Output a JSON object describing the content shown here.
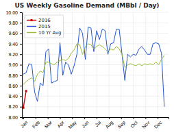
{
  "chart_data": {
    "type": "line",
    "title": "US Weekly Gasoline Demand (MBbl / Day)",
    "x": [
      0,
      1,
      2,
      3,
      4,
      5,
      6,
      7,
      8,
      9,
      10,
      11,
      12,
      13,
      14,
      15,
      16,
      17,
      18,
      19,
      20,
      21,
      22,
      23,
      24,
      25,
      26,
      27,
      28,
      29,
      30,
      31,
      32,
      33,
      34,
      35,
      36,
      37,
      38,
      39,
      40,
      41,
      42,
      43,
      44,
      45,
      46,
      47,
      48,
      49,
      50,
      51
    ],
    "series": [
      {
        "name": "2016",
        "color": "#cc0000",
        "marker": "square",
        "values": [
          8.18,
          8.5,
          null,
          null,
          null,
          null,
          null,
          null,
          null,
          null,
          null,
          null,
          null,
          null,
          null,
          null,
          null,
          null,
          null,
          null,
          null,
          null,
          null,
          null,
          null,
          null,
          null,
          null,
          null,
          null,
          null,
          null,
          null,
          null,
          null,
          null,
          null,
          null,
          null,
          null,
          null,
          null,
          null,
          null,
          null,
          null,
          null,
          null,
          null,
          null,
          null,
          null
        ]
      },
      {
        "name": "2015",
        "color": "#2255cc",
        "values": [
          8.82,
          8.85,
          9.02,
          9.0,
          8.48,
          8.3,
          8.65,
          8.6,
          9.25,
          9.3,
          8.65,
          8.68,
          8.7,
          9.42,
          8.8,
          9.05,
          9.0,
          8.82,
          8.98,
          9.2,
          9.7,
          9.6,
          9.1,
          9.72,
          9.7,
          9.25,
          9.65,
          9.48,
          9.68,
          9.65,
          9.2,
          9.4,
          9.42,
          9.68,
          9.68,
          9.2,
          8.7,
          9.2,
          9.15,
          9.2,
          9.18,
          9.3,
          9.35,
          9.28,
          9.2,
          9.2,
          9.4,
          9.42,
          9.4,
          9.22,
          8.2,
          null
        ]
      },
      {
        "name": "10 Yr Avg",
        "color": "#99bb33",
        "values": [
          8.62,
          8.68,
          8.72,
          8.75,
          8.68,
          8.82,
          8.88,
          8.85,
          9.05,
          9.05,
          9.02,
          9.0,
          9.05,
          9.08,
          9.1,
          9.08,
          9.12,
          9.22,
          9.28,
          9.4,
          9.38,
          9.2,
          9.35,
          9.4,
          9.38,
          9.3,
          9.35,
          9.38,
          9.35,
          9.3,
          9.25,
          9.3,
          9.28,
          9.35,
          9.3,
          9.2,
          8.95,
          9.0,
          9.02,
          9.0,
          8.98,
          9.02,
          8.98,
          9.02,
          9.0,
          9.02,
          9.0,
          9.05,
          9.0,
          9.1,
          9.18,
          null
        ]
      }
    ],
    "xlim": [
      -0.5,
      51.5
    ],
    "xticks": [
      {
        "value": 0,
        "label": "Jan"
      },
      {
        "value": 4.33,
        "label": "Feb"
      },
      {
        "value": 8.66,
        "label": "Mar"
      },
      {
        "value": 13.0,
        "label": "Apr"
      },
      {
        "value": 17.33,
        "label": "May"
      },
      {
        "value": 21.66,
        "label": "Jun"
      },
      {
        "value": 26.0,
        "label": "Jul"
      },
      {
        "value": 30.33,
        "label": "Aug"
      },
      {
        "value": 34.66,
        "label": "Sep"
      },
      {
        "value": 39.0,
        "label": "Oct"
      },
      {
        "value": 43.33,
        "label": "Nov"
      },
      {
        "value": 47.66,
        "label": "Dec"
      }
    ],
    "ylim": [
      8.0,
      10.0
    ],
    "yticks": [
      {
        "value": 8.0,
        "label": "8.00"
      },
      {
        "value": 8.2,
        "label": "8.20"
      },
      {
        "value": 8.4,
        "label": "8.40"
      },
      {
        "value": 8.6,
        "label": "8.60"
      },
      {
        "value": 8.8,
        "label": "8.80"
      },
      {
        "value": 9.0,
        "label": "9.00"
      },
      {
        "value": 9.2,
        "label": "9.20"
      },
      {
        "value": 9.4,
        "label": "9.40"
      },
      {
        "value": 9.6,
        "label": "9.60"
      },
      {
        "value": 9.8,
        "label": "9.80"
      },
      {
        "value": 10.0,
        "label": "10.00"
      }
    ],
    "grid": true,
    "legend": "upper left"
  }
}
